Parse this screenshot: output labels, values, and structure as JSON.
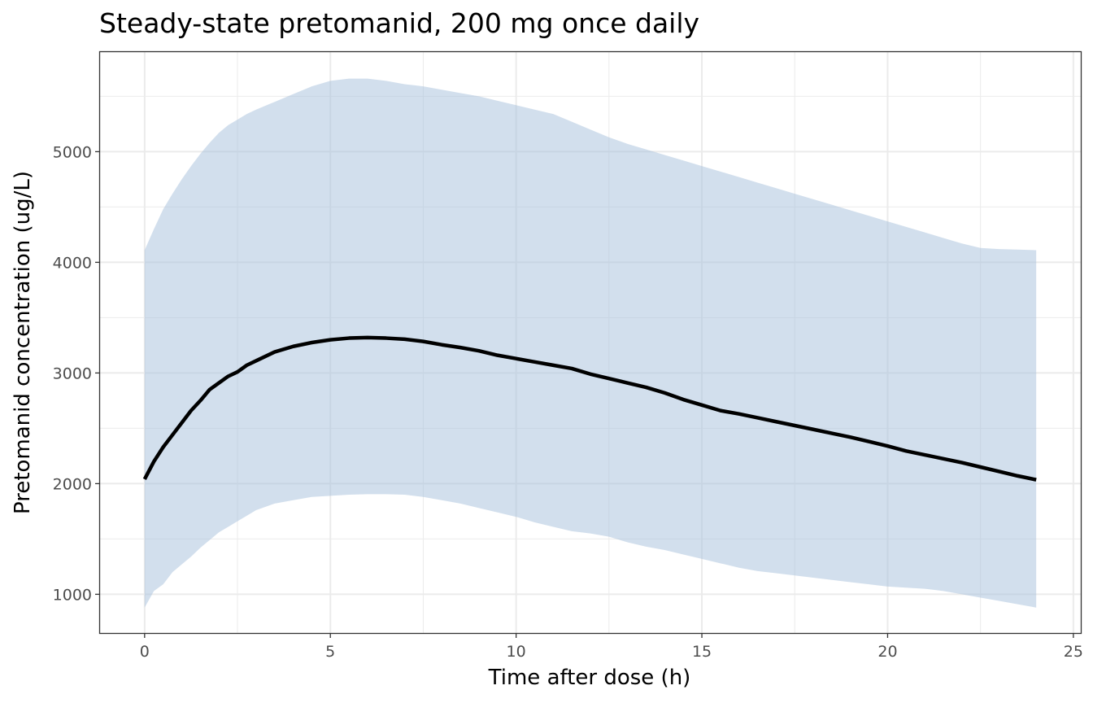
{
  "chart_data": {
    "type": "line",
    "title": "Steady-state pretomanid, 200 mg once daily",
    "xlabel": "Time after dose (h)",
    "ylabel": "Pretomanid concentration (ug/L)",
    "xlim": [
      -1.2,
      25.2
    ],
    "ylim": [
      650,
      5900
    ],
    "x_ticks": [
      0,
      5,
      10,
      15,
      20,
      25
    ],
    "x_tick_labels": [
      "0",
      "5",
      "10",
      "15",
      "20",
      "25"
    ],
    "y_ticks": [
      1000,
      2000,
      3000,
      4000,
      5000
    ],
    "y_tick_labels": [
      "1000",
      "2000",
      "3000",
      "4000",
      "5000"
    ],
    "grid": true,
    "colors": {
      "ribbon": "#a6bfdb",
      "line": "#000000",
      "grid": "#ebebeb",
      "panel_border": "#333333"
    },
    "series": [
      {
        "x": [
          0,
          0.25,
          0.5,
          0.75,
          1,
          1.25,
          1.5,
          1.75,
          2,
          2.25,
          2.5,
          2.75,
          3,
          3.5,
          4,
          4.5,
          5,
          5.5,
          6,
          6.5,
          7,
          7.5,
          8,
          8.5,
          9,
          9.5,
          10,
          10.5,
          11,
          11.5,
          12,
          12.5,
          13,
          13.5,
          14,
          14.5,
          15,
          15.5,
          16,
          16.5,
          17,
          17.5,
          18,
          18.5,
          19,
          19.5,
          20,
          20.5,
          21,
          21.5,
          22,
          22.5,
          23,
          23.5,
          24
        ],
        "values": [
          2040,
          2200,
          2330,
          2440,
          2550,
          2660,
          2750,
          2850,
          2910,
          2970,
          3010,
          3070,
          3110,
          3190,
          3240,
          3275,
          3300,
          3315,
          3320,
          3315,
          3305,
          3285,
          3255,
          3230,
          3200,
          3160,
          3130,
          3100,
          3070,
          3040,
          2990,
          2950,
          2910,
          2870,
          2820,
          2760,
          2710,
          2660,
          2630,
          2595,
          2560,
          2525,
          2490,
          2455,
          2420,
          2380,
          2340,
          2295,
          2260,
          2225,
          2190,
          2150,
          2110,
          2070,
          2035
        ]
      }
    ],
    "ribbon": {
      "x": [
        0,
        0.25,
        0.5,
        0.75,
        1,
        1.25,
        1.5,
        1.75,
        2,
        2.25,
        2.5,
        2.75,
        3,
        3.5,
        4,
        4.5,
        5,
        5.5,
        6,
        6.5,
        7,
        7.5,
        8,
        8.5,
        9,
        9.5,
        10,
        10.5,
        11,
        11.5,
        12,
        12.5,
        13,
        13.5,
        14,
        14.5,
        15,
        15.5,
        16,
        16.5,
        17,
        17.5,
        18,
        18.5,
        19,
        19.5,
        20,
        20.5,
        21,
        21.5,
        22,
        22.5,
        23,
        23.5,
        24
      ],
      "upper": [
        4110,
        4300,
        4480,
        4620,
        4750,
        4870,
        4980,
        5080,
        5170,
        5240,
        5290,
        5340,
        5380,
        5450,
        5520,
        5590,
        5640,
        5660,
        5660,
        5640,
        5610,
        5590,
        5560,
        5530,
        5500,
        5460,
        5420,
        5380,
        5340,
        5270,
        5200,
        5130,
        5070,
        5020,
        4970,
        4920,
        4870,
        4820,
        4770,
        4720,
        4670,
        4620,
        4570,
        4520,
        4470,
        4420,
        4370,
        4320,
        4270,
        4220,
        4170,
        4130,
        4120,
        4115,
        4110
      ],
      "lower": [
        880,
        1030,
        1090,
        1200,
        1270,
        1340,
        1420,
        1490,
        1560,
        1610,
        1660,
        1710,
        1760,
        1820,
        1850,
        1880,
        1890,
        1900,
        1905,
        1905,
        1900,
        1880,
        1850,
        1820,
        1780,
        1740,
        1700,
        1650,
        1610,
        1570,
        1550,
        1520,
        1470,
        1430,
        1400,
        1360,
        1320,
        1280,
        1240,
        1210,
        1190,
        1170,
        1150,
        1130,
        1110,
        1090,
        1070,
        1060,
        1050,
        1030,
        1000,
        970,
        940,
        910,
        880
      ]
    }
  }
}
